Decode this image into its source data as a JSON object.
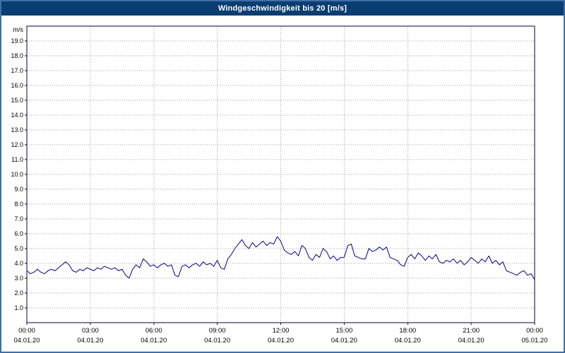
{
  "title": "Windgeschwindigkeit bis 20 [m/s]",
  "colors": {
    "title_bar": "#0a3d70",
    "title_text": "#ffffff",
    "window_border": "#3e6fa9",
    "plot_border": "#000040",
    "grid": "#a0a0a0",
    "line": "#000080",
    "background": "#ffffff",
    "label_text": "#000000"
  },
  "chart_data": {
    "type": "line",
    "title": "Windgeschwindigkeit bis 20 [m/s]",
    "ylabel": "m/s",
    "xlabel": "",
    "ylim": [
      0,
      20
    ],
    "y_tick_step": 1,
    "y_tick_labels": [
      "19.0",
      "18.0",
      "17.0",
      "16.0",
      "15.0",
      "14.0",
      "13.0",
      "12.0",
      "11.0",
      "10.0",
      "9.0",
      "8.0",
      "7.0",
      "6.0",
      "5.0",
      "4.0",
      "3.0",
      "2.0",
      "1.0"
    ],
    "x_hours_range": [
      0,
      24
    ],
    "x_tick_hours": [
      0,
      3,
      6,
      9,
      12,
      15,
      18,
      21,
      24
    ],
    "x_tick_labels": [
      "00:00",
      "03:00",
      "06:00",
      "09:00",
      "12:00",
      "15:00",
      "18:00",
      "21:00",
      "00:00"
    ],
    "x_date_labels": [
      "04.01.20",
      "04.01.20",
      "04.01.20",
      "04.01.20",
      "04.01.20",
      "04.01.20",
      "04.01.20",
      "04.01.20",
      "05.01.20"
    ],
    "grid": true,
    "legend": "none",
    "sample_interval_minutes": 10,
    "series": [
      {
        "name": "Windgeschwindigkeit",
        "values": [
          3.5,
          3.3,
          3.4,
          3.6,
          3.4,
          3.3,
          3.5,
          3.6,
          3.5,
          3.7,
          3.9,
          4.1,
          3.9,
          3.5,
          3.4,
          3.6,
          3.5,
          3.7,
          3.6,
          3.5,
          3.7,
          3.6,
          3.8,
          3.7,
          3.6,
          3.7,
          3.5,
          3.6,
          3.2,
          3.0,
          3.6,
          3.9,
          3.7,
          4.3,
          4.1,
          3.8,
          3.9,
          3.7,
          3.9,
          4.0,
          3.8,
          3.9,
          3.2,
          3.1,
          3.8,
          3.9,
          3.7,
          3.9,
          4.0,
          3.8,
          4.1,
          3.9,
          4.0,
          3.8,
          4.2,
          3.7,
          3.6,
          4.3,
          4.6,
          5.0,
          5.3,
          5.6,
          5.2,
          5.0,
          5.4,
          5.1,
          5.3,
          5.5,
          5.2,
          5.4,
          5.3,
          5.8,
          5.5,
          4.9,
          4.7,
          4.6,
          4.8,
          4.5,
          5.2,
          5.0,
          4.4,
          4.2,
          4.6,
          4.4,
          5.0,
          4.8,
          4.3,
          4.5,
          4.2,
          4.4,
          4.4,
          5.2,
          5.3,
          4.5,
          4.4,
          4.3,
          4.3,
          5.0,
          4.8,
          4.9,
          5.1,
          4.9,
          5.1,
          4.4,
          4.3,
          4.2,
          3.9,
          3.8,
          4.4,
          4.6,
          4.3,
          4.7,
          4.5,
          4.2,
          4.5,
          4.3,
          4.6,
          4.1,
          4.0,
          4.2,
          4.1,
          4.3,
          4.0,
          4.2,
          3.9,
          4.1,
          4.4,
          4.2,
          4.0,
          4.3,
          4.1,
          4.5,
          4.0,
          4.2,
          3.9,
          4.1,
          3.5,
          3.4,
          3.3,
          3.2,
          3.4,
          3.5,
          3.2,
          3.3,
          2.9
        ]
      }
    ]
  }
}
